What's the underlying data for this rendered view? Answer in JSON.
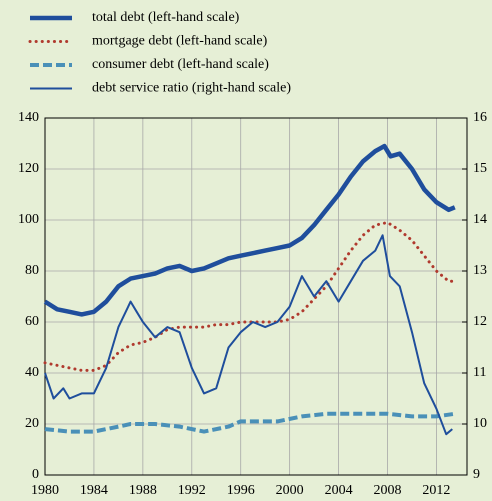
{
  "chart_data": {
    "type": "line",
    "legend": "top",
    "grid": true,
    "xlim": [
      1980,
      2014.5
    ],
    "xticks": [
      1980,
      1984,
      1988,
      1992,
      1996,
      2000,
      2004,
      2008,
      2012
    ],
    "ylim": [
      0,
      140
    ],
    "yticks": [
      0,
      20,
      40,
      60,
      80,
      100,
      120,
      140
    ],
    "y2lim": [
      9,
      16
    ],
    "y2ticks": [
      9,
      10,
      11,
      12,
      13,
      14,
      15,
      16
    ],
    "series": [
      {
        "name": "total debt (left-hand scale)",
        "color": "#1f4e9c",
        "style": "thick",
        "x": [
          1980,
          1981,
          1982,
          1983,
          1984,
          1985,
          1986,
          1987,
          1988,
          1989,
          1990,
          1991,
          1992,
          1993,
          1994,
          1995,
          1996,
          1997,
          1998,
          1999,
          2000,
          2001,
          2002,
          2003,
          2004,
          2005,
          2006,
          2007,
          2007.75,
          2008.25,
          2009,
          2010,
          2011,
          2012,
          2013,
          2013.5
        ],
        "values": [
          68,
          65,
          64,
          63,
          64,
          68,
          74,
          77,
          78,
          79,
          81,
          82,
          80,
          81,
          83,
          85,
          86,
          87,
          88,
          89,
          90,
          93,
          98,
          104,
          110,
          117,
          123,
          127,
          129,
          125,
          126,
          120,
          112,
          107,
          104,
          105
        ]
      },
      {
        "name": "mortgage debt (left-hand scale)",
        "color": "#b03a2e",
        "style": "dotted",
        "x": [
          1980,
          1982,
          1983,
          1984,
          1985,
          1986,
          1987,
          1988,
          1989,
          1990,
          1991,
          1992,
          1993,
          1994,
          1995,
          1996,
          1997,
          1998,
          1999,
          2000,
          2001,
          2002,
          2003,
          2004,
          2005,
          2006,
          2007,
          2008,
          2009,
          2010,
          2011,
          2012,
          2013,
          2013.5
        ],
        "values": [
          44,
          42,
          41,
          41,
          43,
          48,
          51,
          52,
          54,
          57,
          58,
          58,
          58,
          59,
          59,
          60,
          60,
          60,
          60,
          61,
          64,
          69,
          74,
          81,
          88,
          94,
          98,
          99,
          96,
          92,
          86,
          80,
          76,
          76
        ]
      },
      {
        "name": "consumer debt (left-hand scale)",
        "color": "#4a90b8",
        "style": "dashed",
        "x": [
          1980,
          1982,
          1984,
          1986,
          1987,
          1989,
          1991,
          1993,
          1995,
          1996,
          1999,
          2001,
          2003,
          2005,
          2007,
          2008,
          2010,
          2012,
          2013.5
        ],
        "values": [
          18,
          17,
          17,
          19,
          20,
          20,
          19,
          17,
          19,
          21,
          21,
          23,
          24,
          24,
          24,
          24,
          23,
          23,
          24
        ]
      },
      {
        "name": "debt service ratio (right-hand scale)",
        "color": "#1f4e9c",
        "style": "solid",
        "axis": "y2",
        "x": [
          1980,
          1980.7,
          1981.5,
          1982,
          1983,
          1984,
          1985,
          1986,
          1987,
          1987.5,
          1988,
          1989,
          1990,
          1991,
          1992,
          1993,
          1994,
          1995,
          1996,
          1997,
          1998,
          1999,
          2000,
          2001,
          2002,
          2003,
          2004,
          2005,
          2006,
          2007,
          2007.6,
          2008.2,
          2009,
          2010,
          2011,
          2012,
          2012.8,
          2013.3
        ],
        "values": [
          11.0,
          10.5,
          10.7,
          10.5,
          10.6,
          10.6,
          11.1,
          11.9,
          12.4,
          12.2,
          12.0,
          11.7,
          11.9,
          11.8,
          11.1,
          10.6,
          10.7,
          11.5,
          11.8,
          12.0,
          11.9,
          12.0,
          12.3,
          12.9,
          12.5,
          12.8,
          12.4,
          12.8,
          13.2,
          13.4,
          13.7,
          12.9,
          12.7,
          11.8,
          10.8,
          10.3,
          9.8,
          9.9
        ]
      }
    ]
  }
}
